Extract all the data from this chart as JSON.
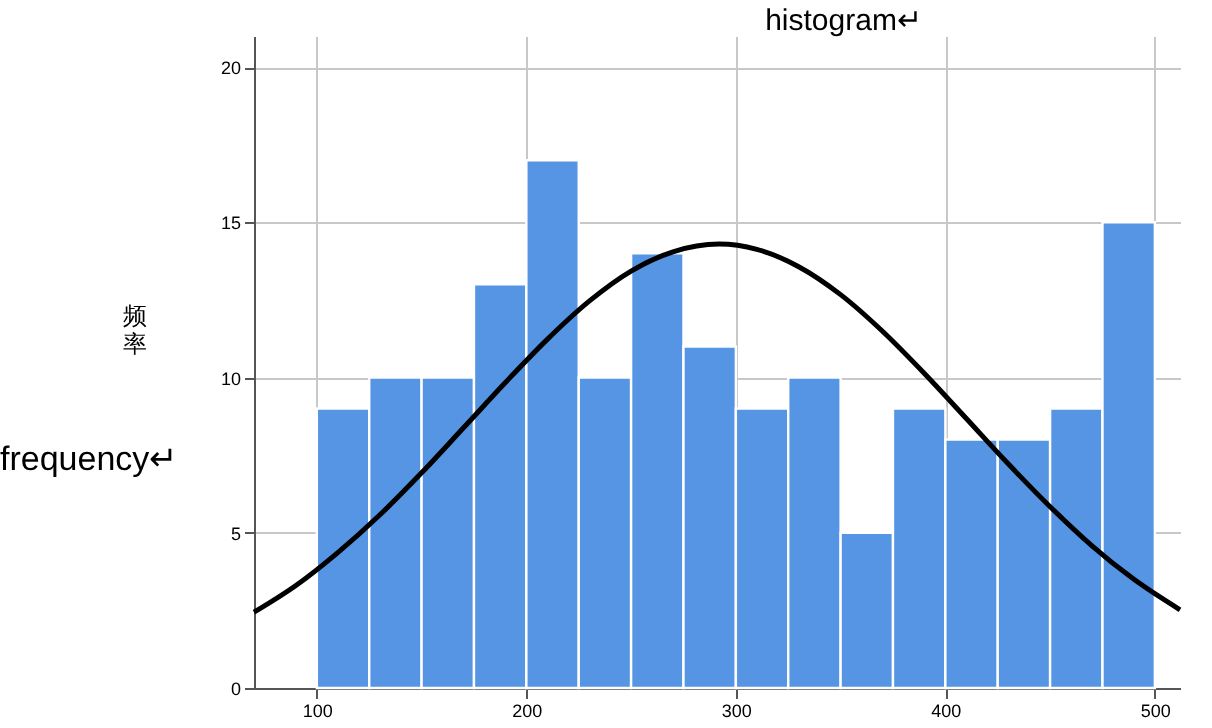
{
  "chart_data": {
    "type": "histogram",
    "title": "histogram↵",
    "ylabel": "频率",
    "annotations": [
      "frequency↵"
    ],
    "bins": [
      100,
      125,
      150,
      175,
      200,
      225,
      250,
      275,
      300,
      325,
      350,
      375,
      400,
      425,
      450,
      475,
      500
    ],
    "values": [
      9,
      10,
      10,
      13,
      17,
      10,
      14,
      11,
      9,
      10,
      5,
      9,
      8,
      8,
      9,
      15
    ],
    "color": "#5595e4",
    "series": [
      {
        "type": "line",
        "color": "#000000",
        "x": [
          70,
          90,
          110,
          130,
          150,
          170,
          190,
          210,
          230,
          250,
          270,
          292,
          310,
          330,
          350,
          370,
          390,
          410,
          430,
          450,
          470,
          490,
          512
        ],
        "values": [
          2.44,
          3.3,
          4.36,
          5.57,
          6.93,
          8.38,
          9.84,
          11.23,
          12.46,
          13.43,
          14.05,
          14.3,
          14.13,
          13.57,
          12.67,
          11.49,
          10.13,
          8.68,
          7.22,
          5.84,
          4.58,
          3.5,
          2.52
        ]
      }
    ],
    "xlim": [
      70,
      512
    ],
    "xticks": [
      100,
      200,
      300,
      400,
      500
    ],
    "ylim": [
      0,
      21
    ],
    "yticks": [
      0,
      5,
      10,
      15,
      20
    ],
    "grid": true,
    "line_style": "solid",
    "marker": "none"
  }
}
